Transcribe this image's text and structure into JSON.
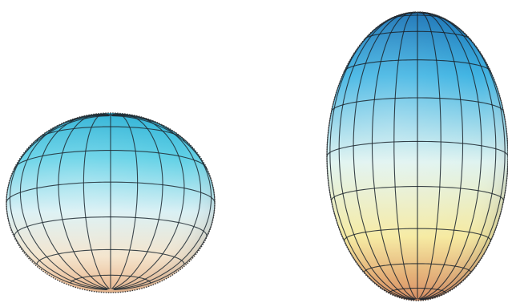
{
  "figure": {
    "background": "#ffffff",
    "shapes": [
      {
        "kind": "oblate-spheroid",
        "colors": {
          "top": "#2fb2d6",
          "upper": "#5fd0e6",
          "middle": "#d9f0f4",
          "lower": "#f4e4cc",
          "bottom": "#e9b48a",
          "grid": "#1f2a33"
        },
        "meridians": 24,
        "parallels": 7
      },
      {
        "kind": "prolate-spheroid",
        "colors": {
          "top": "#1c74b6",
          "upper": "#3fb4e3",
          "middle": "#dff3f0",
          "lower": "#f6eaa0",
          "bottom": "#d98a5d",
          "grid": "#1a232b"
        },
        "meridians": 24,
        "parallels": 9
      }
    ]
  }
}
